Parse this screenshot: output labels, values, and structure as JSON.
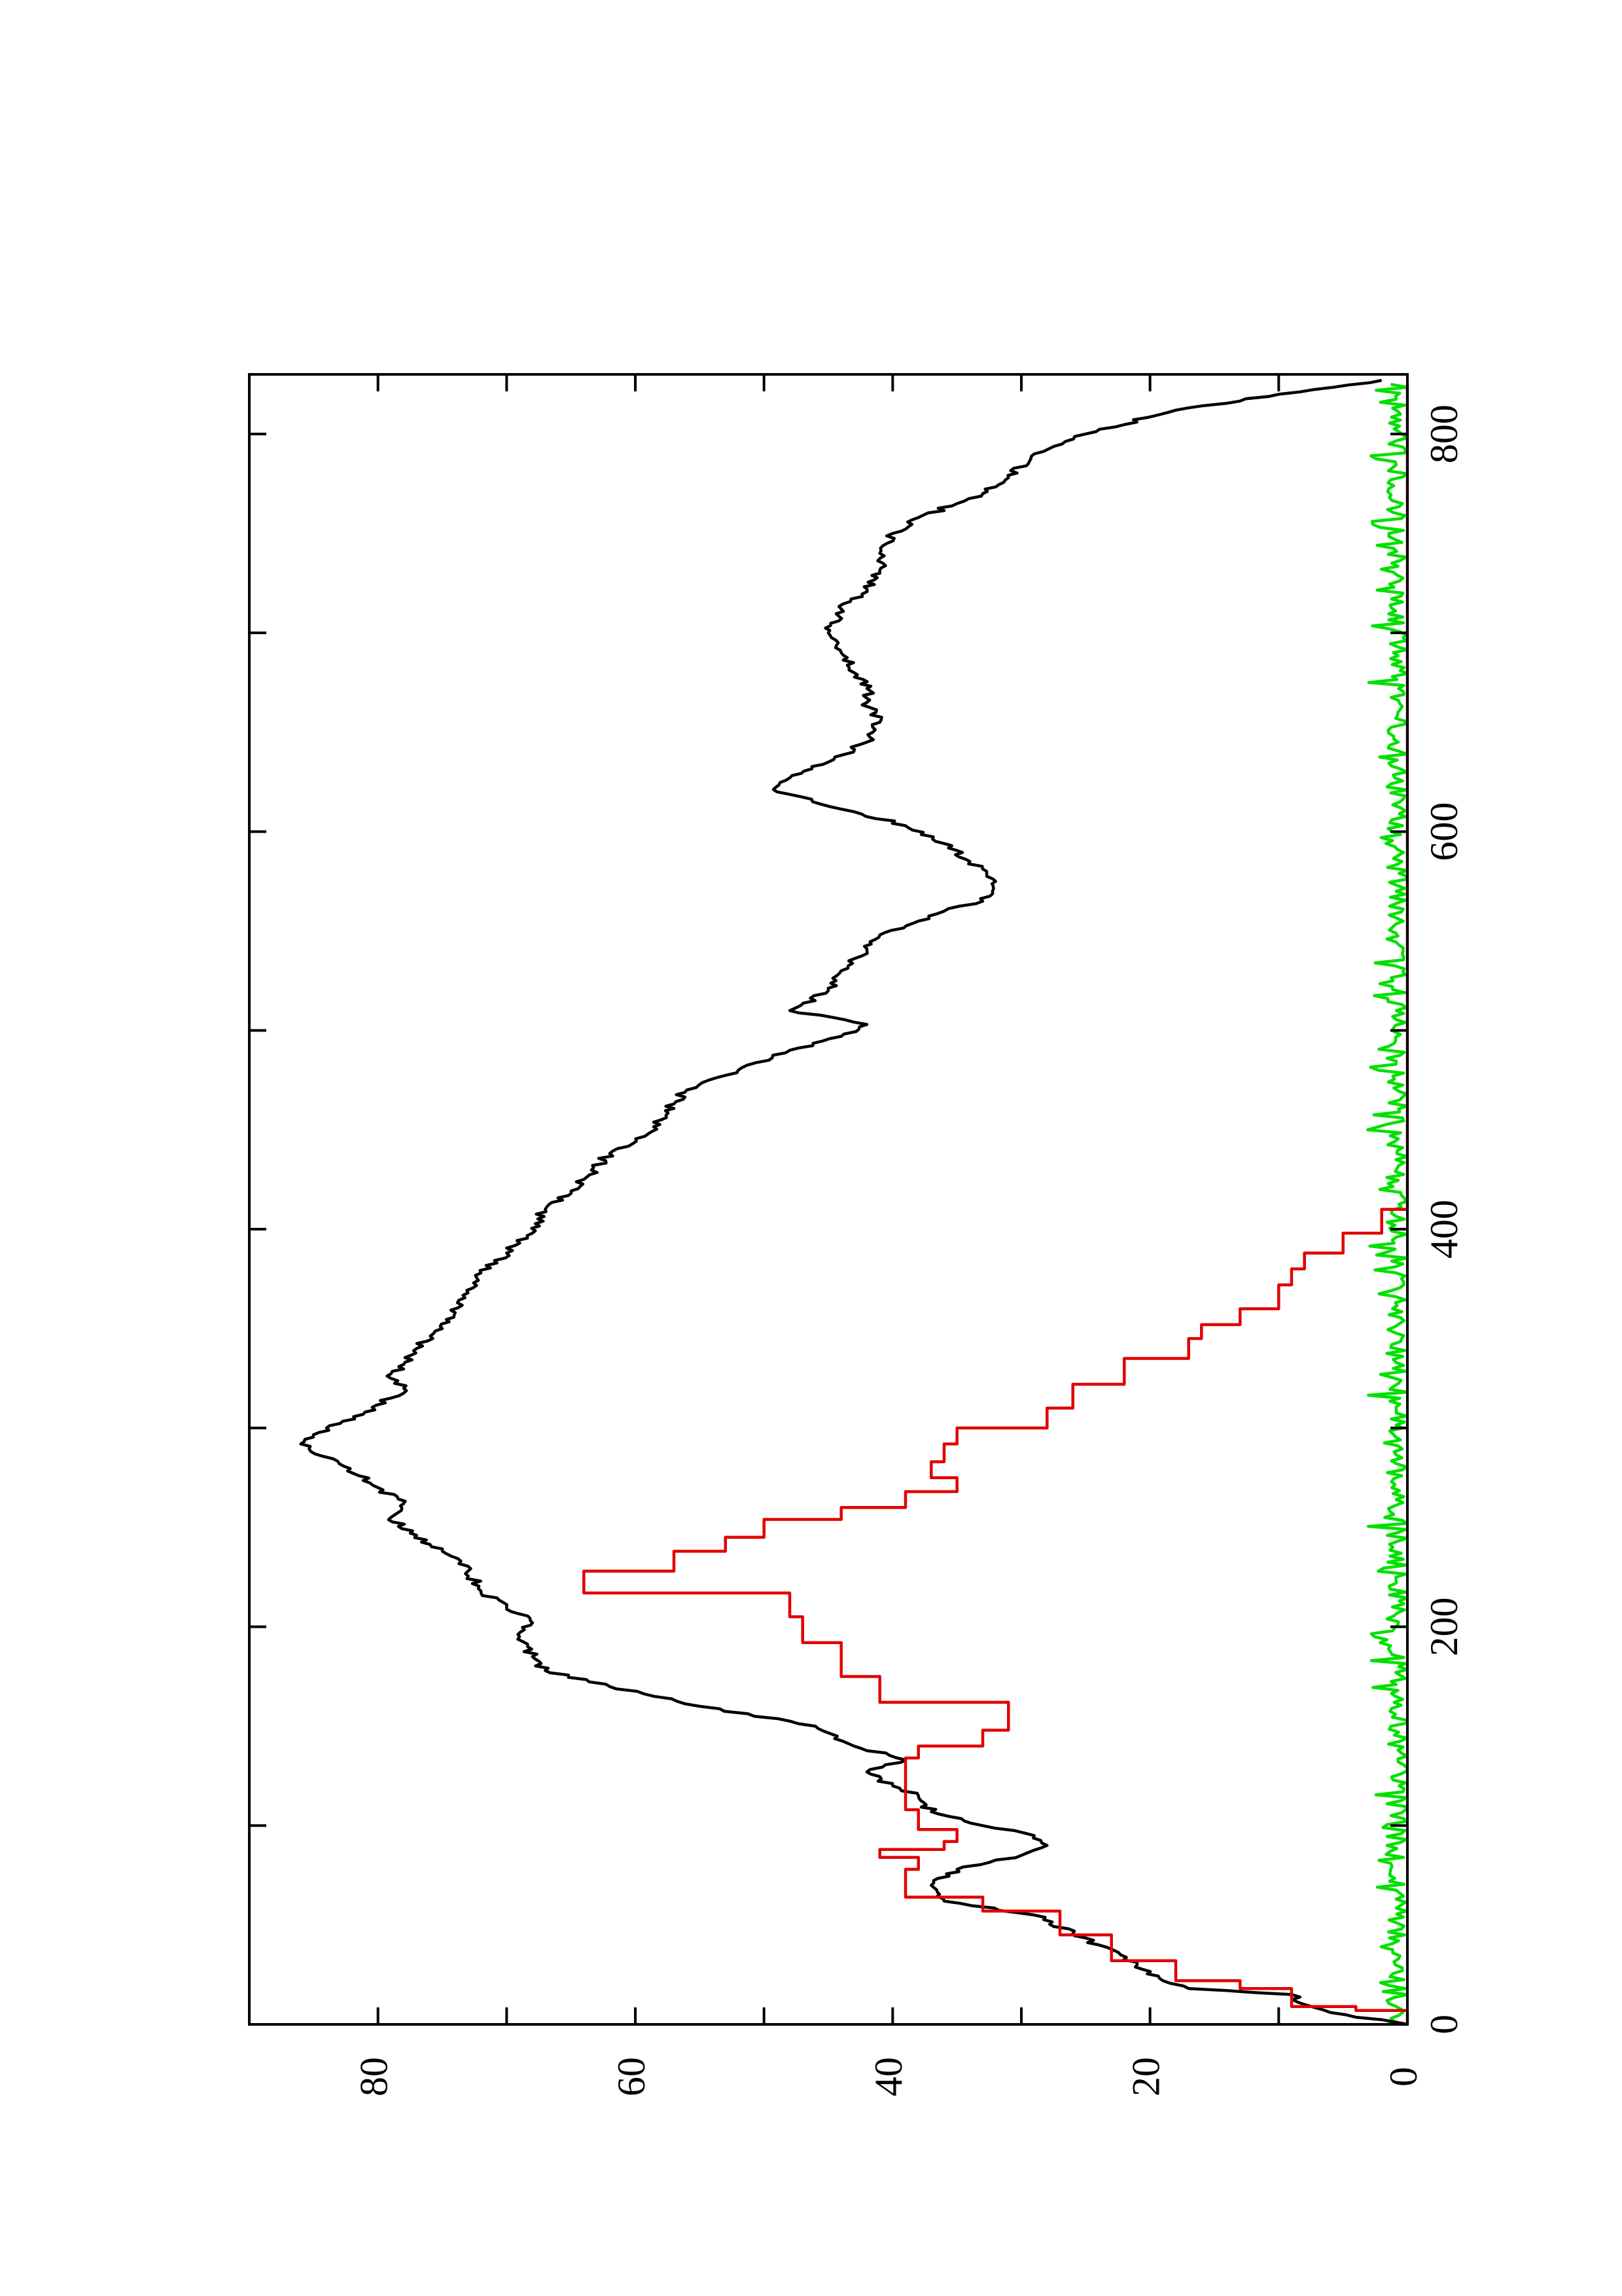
{
  "chart_data": {
    "type": "line",
    "orientation": "rotated-90-ccw",
    "title": "",
    "xlabel": "",
    "ylabel": "",
    "xlim": [
      0,
      830
    ],
    "ylim": [
      0,
      90
    ],
    "grid": false,
    "legend": "none",
    "x_ticks": [
      {
        "value": 0,
        "label": "0"
      },
      {
        "value": 100,
        "label": ""
      },
      {
        "value": 200,
        "label": "200"
      },
      {
        "value": 300,
        "label": ""
      },
      {
        "value": 400,
        "label": "400"
      },
      {
        "value": 500,
        "label": ""
      },
      {
        "value": 600,
        "label": "600"
      },
      {
        "value": 700,
        "label": ""
      },
      {
        "value": 800,
        "label": "800"
      }
    ],
    "y_ticks": [
      {
        "value": 0,
        "label": "0"
      },
      {
        "value": 10,
        "label": ""
      },
      {
        "value": 20,
        "label": "20"
      },
      {
        "value": 30,
        "label": ""
      },
      {
        "value": 40,
        "label": "40"
      },
      {
        "value": 50,
        "label": ""
      },
      {
        "value": 60,
        "label": "60"
      },
      {
        "value": 70,
        "label": ""
      },
      {
        "value": 80,
        "label": "80"
      }
    ],
    "series": [
      {
        "color": "#000000",
        "style": "jagged",
        "points": [
          [
            0,
            0
          ],
          [
            6,
            6
          ],
          [
            10,
            8
          ],
          [
            15,
            9
          ],
          [
            18,
            17
          ],
          [
            22,
            19
          ],
          [
            30,
            21
          ],
          [
            40,
            24
          ],
          [
            55,
            29
          ],
          [
            62,
            36
          ],
          [
            70,
            37
          ],
          [
            78,
            35
          ],
          [
            85,
            30
          ],
          [
            90,
            28
          ],
          [
            95,
            29
          ],
          [
            100,
            33
          ],
          [
            107,
            37
          ],
          [
            115,
            38
          ],
          [
            120,
            40
          ],
          [
            127,
            42
          ],
          [
            133,
            39
          ],
          [
            140,
            43
          ],
          [
            150,
            46
          ],
          [
            160,
            55
          ],
          [
            170,
            62
          ],
          [
            178,
            67
          ],
          [
            185,
            68
          ],
          [
            195,
            69
          ],
          [
            202,
            68
          ],
          [
            210,
            70
          ],
          [
            218,
            72
          ],
          [
            228,
            73
          ],
          [
            238,
            75
          ],
          [
            246,
            77
          ],
          [
            255,
            79
          ],
          [
            262,
            78
          ],
          [
            270,
            80
          ],
          [
            282,
            83
          ],
          [
            292,
            86
          ],
          [
            300,
            84
          ],
          [
            308,
            81
          ],
          [
            315,
            79
          ],
          [
            320,
            78
          ],
          [
            325,
            79
          ],
          [
            332,
            78
          ],
          [
            340,
            77
          ],
          [
            350,
            75
          ],
          [
            358,
            74
          ],
          [
            368,
            73
          ],
          [
            378,
            72
          ],
          [
            388,
            70
          ],
          [
            398,
            68
          ],
          [
            410,
            67
          ],
          [
            425,
            64
          ],
          [
            438,
            62
          ],
          [
            448,
            59
          ],
          [
            455,
            58
          ],
          [
            463,
            57
          ],
          [
            470,
            56
          ],
          [
            480,
            52
          ],
          [
            490,
            48
          ],
          [
            497,
            44
          ],
          [
            503,
            42
          ],
          [
            510,
            48
          ],
          [
            520,
            45
          ],
          [
            530,
            44
          ],
          [
            540,
            42
          ],
          [
            548,
            41
          ],
          [
            555,
            38
          ],
          [
            560,
            36
          ],
          [
            565,
            33
          ],
          [
            575,
            32
          ],
          [
            585,
            34
          ],
          [
            594,
            36
          ],
          [
            603,
            39
          ],
          [
            610,
            43
          ],
          [
            620,
            49
          ],
          [
            627,
            48
          ],
          [
            635,
            45
          ],
          [
            645,
            42
          ],
          [
            655,
            41
          ],
          [
            665,
            42
          ],
          [
            672,
            42
          ],
          [
            680,
            43
          ],
          [
            690,
            44
          ],
          [
            700,
            45
          ],
          [
            712,
            44
          ],
          [
            722,
            42
          ],
          [
            730,
            41
          ],
          [
            740,
            41
          ],
          [
            750,
            40
          ],
          [
            758,
            38
          ],
          [
            765,
            35
          ],
          [
            770,
            33
          ],
          [
            778,
            31
          ],
          [
            790,
            29
          ],
          [
            800,
            25
          ],
          [
            812,
            18
          ],
          [
            820,
            10
          ],
          [
            827,
            2
          ]
        ]
      },
      {
        "color": "#e00000",
        "style": "staircase",
        "points": [
          [
            0,
            0
          ],
          [
            7,
            4
          ],
          [
            9,
            9
          ],
          [
            18,
            13
          ],
          [
            22,
            18
          ],
          [
            32,
            23
          ],
          [
            45,
            27
          ],
          [
            57,
            33
          ],
          [
            64,
            39
          ],
          [
            78,
            38
          ],
          [
            84,
            41
          ],
          [
            88,
            36
          ],
          [
            92,
            35
          ],
          [
            98,
            38
          ],
          [
            108,
            39
          ],
          [
            125,
            39
          ],
          [
            134,
            38
          ],
          [
            140,
            33
          ],
          [
            148,
            31
          ],
          [
            156,
            31
          ],
          [
            162,
            41
          ],
          [
            175,
            44
          ],
          [
            192,
            47
          ],
          [
            205,
            48
          ],
          [
            217,
            64
          ],
          [
            228,
            57
          ],
          [
            238,
            53
          ],
          [
            245,
            50
          ],
          [
            254,
            44
          ],
          [
            260,
            39
          ],
          [
            268,
            35
          ],
          [
            275,
            37
          ],
          [
            283,
            36
          ],
          [
            292,
            35
          ],
          [
            300,
            28
          ],
          [
            310,
            26
          ],
          [
            322,
            22
          ],
          [
            335,
            17
          ],
          [
            345,
            16
          ],
          [
            352,
            13
          ],
          [
            360,
            10
          ],
          [
            372,
            9
          ],
          [
            380,
            8
          ],
          [
            388,
            5
          ],
          [
            398,
            2
          ],
          [
            410,
            0
          ],
          [
            420,
            0
          ],
          [
            430,
            0
          ],
          [
            440,
            0
          ],
          [
            455,
            0
          ],
          [
            470,
            0
          ],
          [
            482,
            0
          ],
          [
            495,
            0
          ],
          [
            510,
            0
          ],
          [
            525,
            0
          ],
          [
            540,
            0
          ],
          [
            555,
            0
          ],
          [
            570,
            0
          ],
          [
            585,
            0
          ],
          [
            600,
            0
          ],
          [
            615,
            0
          ],
          [
            630,
            0
          ],
          [
            645,
            0
          ],
          [
            660,
            0
          ],
          [
            675,
            0
          ],
          [
            690,
            0
          ],
          [
            705,
            0
          ],
          [
            720,
            0
          ],
          [
            735,
            0
          ],
          [
            750,
            0
          ],
          [
            765,
            0
          ],
          [
            780,
            0
          ],
          [
            795,
            0
          ],
          [
            810,
            0
          ],
          [
            825,
            0
          ]
        ]
      },
      {
        "color": "#00e000",
        "style": "noise",
        "points": [
          [
            0,
            0
          ],
          [
            50,
            1
          ],
          [
            100,
            1
          ],
          [
            150,
            0
          ],
          [
            200,
            1
          ],
          [
            250,
            0
          ],
          [
            300,
            1
          ],
          [
            350,
            1
          ],
          [
            400,
            0
          ],
          [
            450,
            1
          ],
          [
            500,
            1
          ],
          [
            550,
            0
          ],
          [
            600,
            1
          ],
          [
            650,
            1
          ],
          [
            700,
            0
          ],
          [
            750,
            1
          ],
          [
            800,
            0
          ],
          [
            825,
            0
          ]
        ]
      }
    ]
  }
}
